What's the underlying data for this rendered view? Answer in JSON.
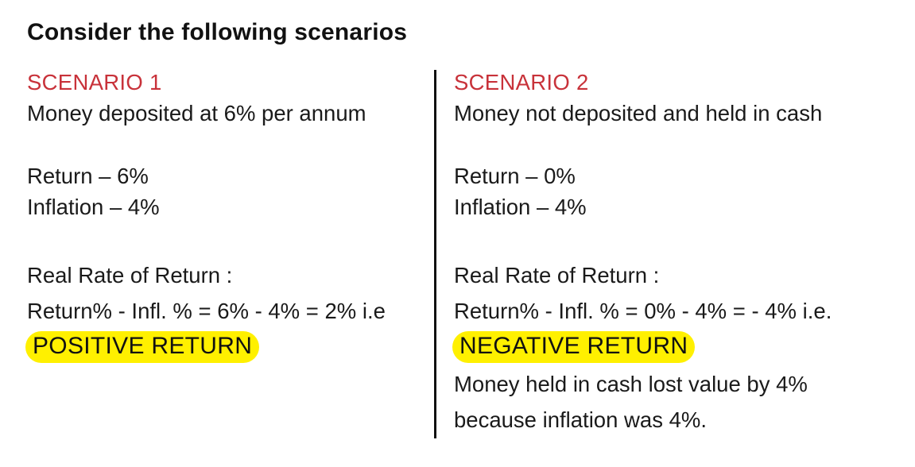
{
  "title": "Consider the following scenarios",
  "scenario1": {
    "heading": "SCENARIO 1",
    "description": "Money deposited at 6% per annum",
    "return_line": "Return – 6%",
    "inflation_line": "Inflation – 4%",
    "rrr_label": "Real Rate of Return :",
    "formula": "Return% - Infl. % = 6% - 4% = 2% i.e",
    "result": "POSITIVE RETURN"
  },
  "scenario2": {
    "heading": "SCENARIO 2",
    "description": "Money not deposited and held in cash",
    "return_line": "Return – 0%",
    "inflation_line": "Inflation – 4%",
    "rrr_label": "Real Rate of Return :",
    "formula": "Return% - Infl. % = 0% - 4% = - 4% i.e.",
    "result": "NEGATIVE RETURN",
    "note_line1": "Money held in cash lost value by 4%",
    "note_line2": "because inflation was 4%."
  },
  "colors": {
    "heading": "#c8323a",
    "highlight": "#fff000",
    "text": "#1a1a1a"
  }
}
